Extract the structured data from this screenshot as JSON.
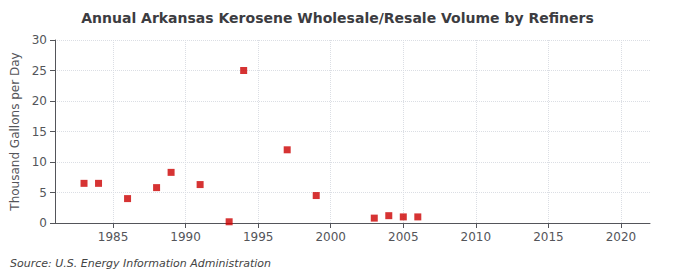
{
  "chart_data": {
    "type": "scatter",
    "title": "Annual Arkansas Kerosene Wholesale/Resale Volume by Refiners",
    "ylabel": "Thousand Gallons per Day",
    "annotations": [
      "Source: U.S. Energy Information Administration"
    ],
    "x": [
      1983,
      1984,
      1986,
      1988,
      1989,
      1991,
      1993,
      1994,
      1997,
      1999,
      2003,
      2004,
      2005,
      2006
    ],
    "values": [
      6.5,
      6.5,
      4.0,
      5.8,
      8.3,
      6.3,
      0.2,
      25.0,
      12.0,
      4.5,
      0.8,
      1.2,
      1.0,
      1.0
    ],
    "color": "#cc0000",
    "marker": "square",
    "xlim": [
      1981,
      2022
    ],
    "xticks": [
      1985,
      1990,
      1995,
      2000,
      2005,
      2010,
      2015,
      2020
    ],
    "ylim": [
      0,
      30
    ],
    "yticks": [
      0,
      5,
      10,
      15,
      20,
      25,
      30
    ],
    "grid": true
  }
}
